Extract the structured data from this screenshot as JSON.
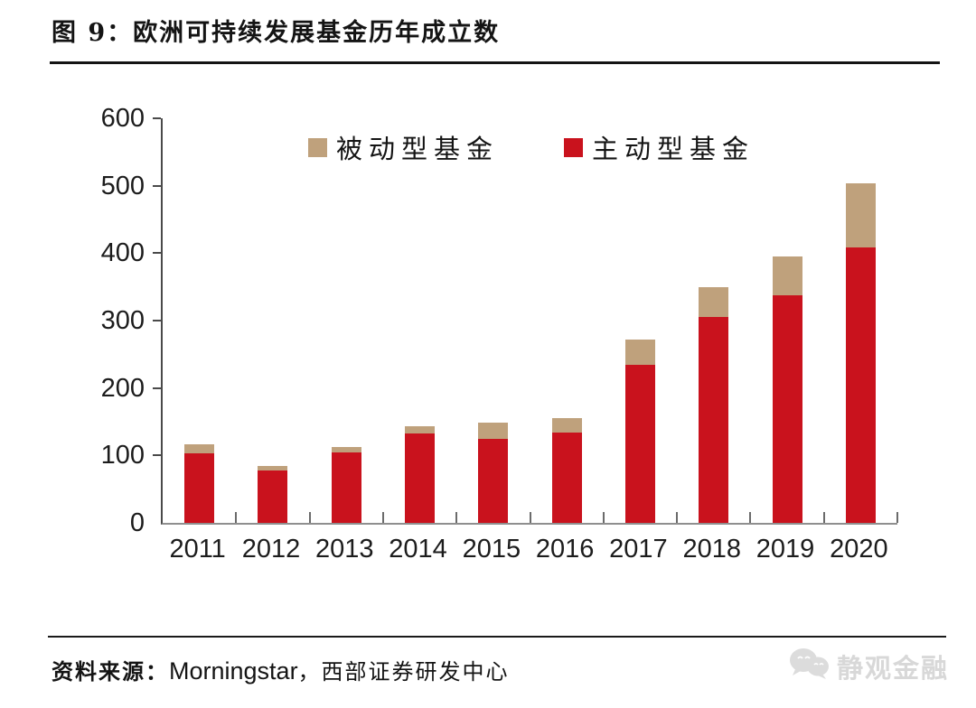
{
  "header": {
    "title": "图 9：欧洲可持续发展基金历年成立数"
  },
  "chart_data": {
    "type": "bar",
    "stacked": true,
    "title": "图 9：欧洲可持续发展基金历年成立数",
    "categories": [
      "2011",
      "2012",
      "2013",
      "2014",
      "2015",
      "2016",
      "2017",
      "2018",
      "2019",
      "2020"
    ],
    "series": [
      {
        "name": "主动型基金",
        "color": "#c9121d",
        "values": [
          103,
          78,
          104,
          132,
          124,
          134,
          234,
          305,
          338,
          408
        ]
      },
      {
        "name": "被动型基金",
        "color": "#bfa17c",
        "values": [
          13,
          7,
          8,
          12,
          25,
          22,
          38,
          45,
          57,
          95
        ]
      }
    ],
    "totals": [
      116,
      85,
      112,
      144,
      149,
      156,
      272,
      350,
      395,
      503
    ],
    "xlabel": "",
    "ylabel": "",
    "ylim": [
      0,
      600
    ],
    "yticks": [
      0,
      100,
      200,
      300,
      400,
      500,
      600
    ],
    "grid": false,
    "legend_position": "top-center"
  },
  "footer": {
    "source_prefix": "资料来源：",
    "source_vendor": "Morningstar",
    "source_suffix": "，西部证券研发中心",
    "watermark": "静观金融"
  }
}
